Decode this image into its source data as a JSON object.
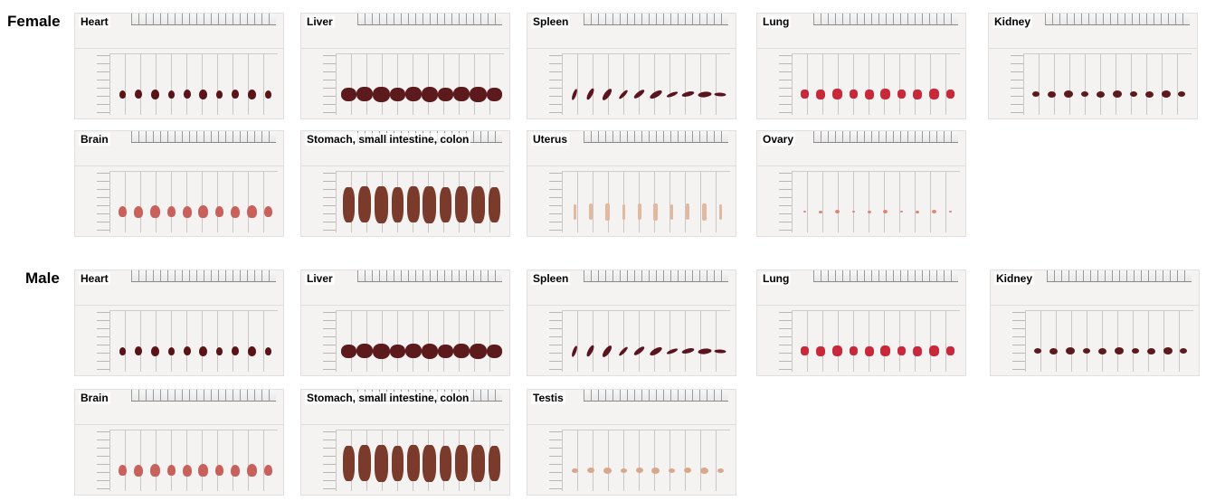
{
  "female": {
    "title": "Female",
    "panels": [
      {
        "label": "Heart",
        "organ": "heart",
        "color": "#5a1418"
      },
      {
        "label": "Liver",
        "organ": "liver",
        "color": "#5c1a1c"
      },
      {
        "label": "Spleen",
        "organ": "spleen",
        "color": "#5a1420"
      },
      {
        "label": "Lung",
        "organ": "lung",
        "color": "#c8283a"
      },
      {
        "label": "Kidney",
        "organ": "kidney",
        "color": "#5c1a1e"
      },
      {
        "label": "Brain",
        "organ": "brain",
        "color": "#c8605c"
      },
      {
        "label": "Stomach, small intestine, colon",
        "organ": "gi",
        "color": "#7a3a2c"
      },
      {
        "label": "Uterus",
        "organ": "uterus",
        "color": "#e2b8a0"
      },
      {
        "label": "Ovary",
        "organ": "ovary",
        "color": "#d88878"
      }
    ]
  },
  "male": {
    "title": "Male",
    "panels": [
      {
        "label": "Heart",
        "organ": "heart",
        "color": "#5a1418"
      },
      {
        "label": "Liver",
        "organ": "liver",
        "color": "#5c1a1c"
      },
      {
        "label": "Spleen",
        "organ": "spleen",
        "color": "#5a1420"
      },
      {
        "label": "Lung",
        "organ": "lung",
        "color": "#c8283a"
      },
      {
        "label": "Kidney",
        "organ": "kidney",
        "color": "#5c1a1e"
      },
      {
        "label": "Brain",
        "organ": "brain",
        "color": "#c8605c"
      },
      {
        "label": "Stomach, small intestine, colon",
        "organ": "gi",
        "color": "#7a3a2c"
      },
      {
        "label": "Testis",
        "organ": "testis",
        "color": "#d8a88c"
      }
    ]
  }
}
